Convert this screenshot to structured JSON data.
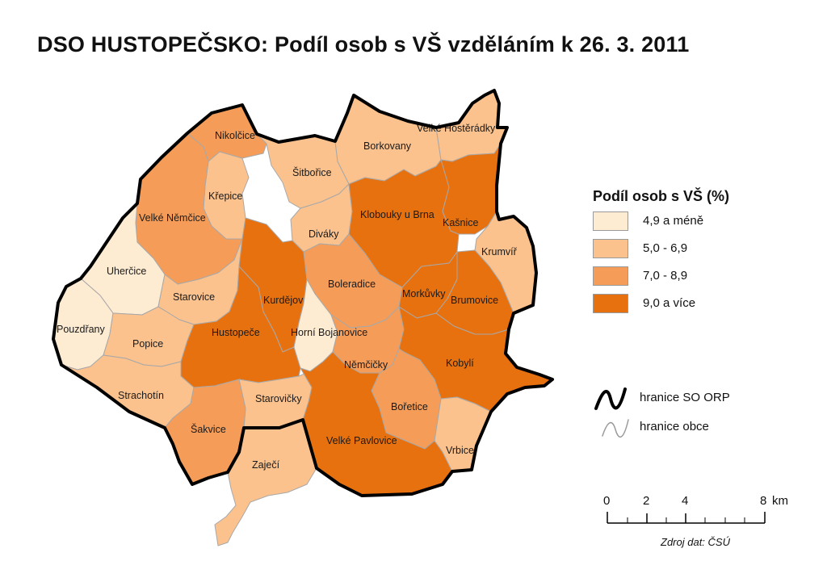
{
  "title": "DSO HUSTOPEČSKO: Podíl osob s VŠ vzděláním k 26. 3. 2011",
  "legend": {
    "title": "Podíl osob s VŠ (%)",
    "classes": [
      {
        "label": "4,9 a méně",
        "color": "#fdebd2"
      },
      {
        "label": "5,0 - 6,9",
        "color": "#fbc28e"
      },
      {
        "label": "7,0 - 8,9",
        "color": "#f59d58"
      },
      {
        "label": "9,0 a více",
        "color": "#e8710f"
      }
    ],
    "lines": {
      "orp": "hranice SO ORP",
      "obce": "hranice obce"
    }
  },
  "scale": {
    "ticks": [
      "0",
      "2",
      "4",
      "8"
    ],
    "unit": "km"
  },
  "source": "Zdroj dat: ČSÚ",
  "municipalities": [
    {
      "name": "Nikolčice",
      "class": 2
    },
    {
      "name": "Šitbořice",
      "class": 1
    },
    {
      "name": "Borkovany",
      "class": 1
    },
    {
      "name": "Velké Hostěrádky",
      "class": 1
    },
    {
      "name": "Křepice",
      "class": 1
    },
    {
      "name": "Velké Němčice",
      "class": 2
    },
    {
      "name": "Diváky",
      "class": 1
    },
    {
      "name": "Klobouky u Brna",
      "class": 3
    },
    {
      "name": "Kašnice",
      "class": 3
    },
    {
      "name": "Krumvíř",
      "class": 1
    },
    {
      "name": "Uherčice",
      "class": 0
    },
    {
      "name": "Starovice",
      "class": 1
    },
    {
      "name": "Kurdějov",
      "class": 3
    },
    {
      "name": "Boleradice",
      "class": 2
    },
    {
      "name": "Morkůvky",
      "class": 3
    },
    {
      "name": "Brumovice",
      "class": 3
    },
    {
      "name": "Pouzdřany",
      "class": 0
    },
    {
      "name": "Popice",
      "class": 1
    },
    {
      "name": "Hustopeče",
      "class": 3
    },
    {
      "name": "Horní Bojanovice",
      "class": 0
    },
    {
      "name": "Němčičky",
      "class": 2
    },
    {
      "name": "Kobylí",
      "class": 3
    },
    {
      "name": "Strachotín",
      "class": 1
    },
    {
      "name": "Starovičky",
      "class": 1
    },
    {
      "name": "Bořetice",
      "class": 2
    },
    {
      "name": "Šakvice",
      "class": 2
    },
    {
      "name": "Velké Pavlovice",
      "class": 3
    },
    {
      "name": "Vrbice",
      "class": 1
    },
    {
      "name": "Zaječí",
      "class": 1
    }
  ]
}
